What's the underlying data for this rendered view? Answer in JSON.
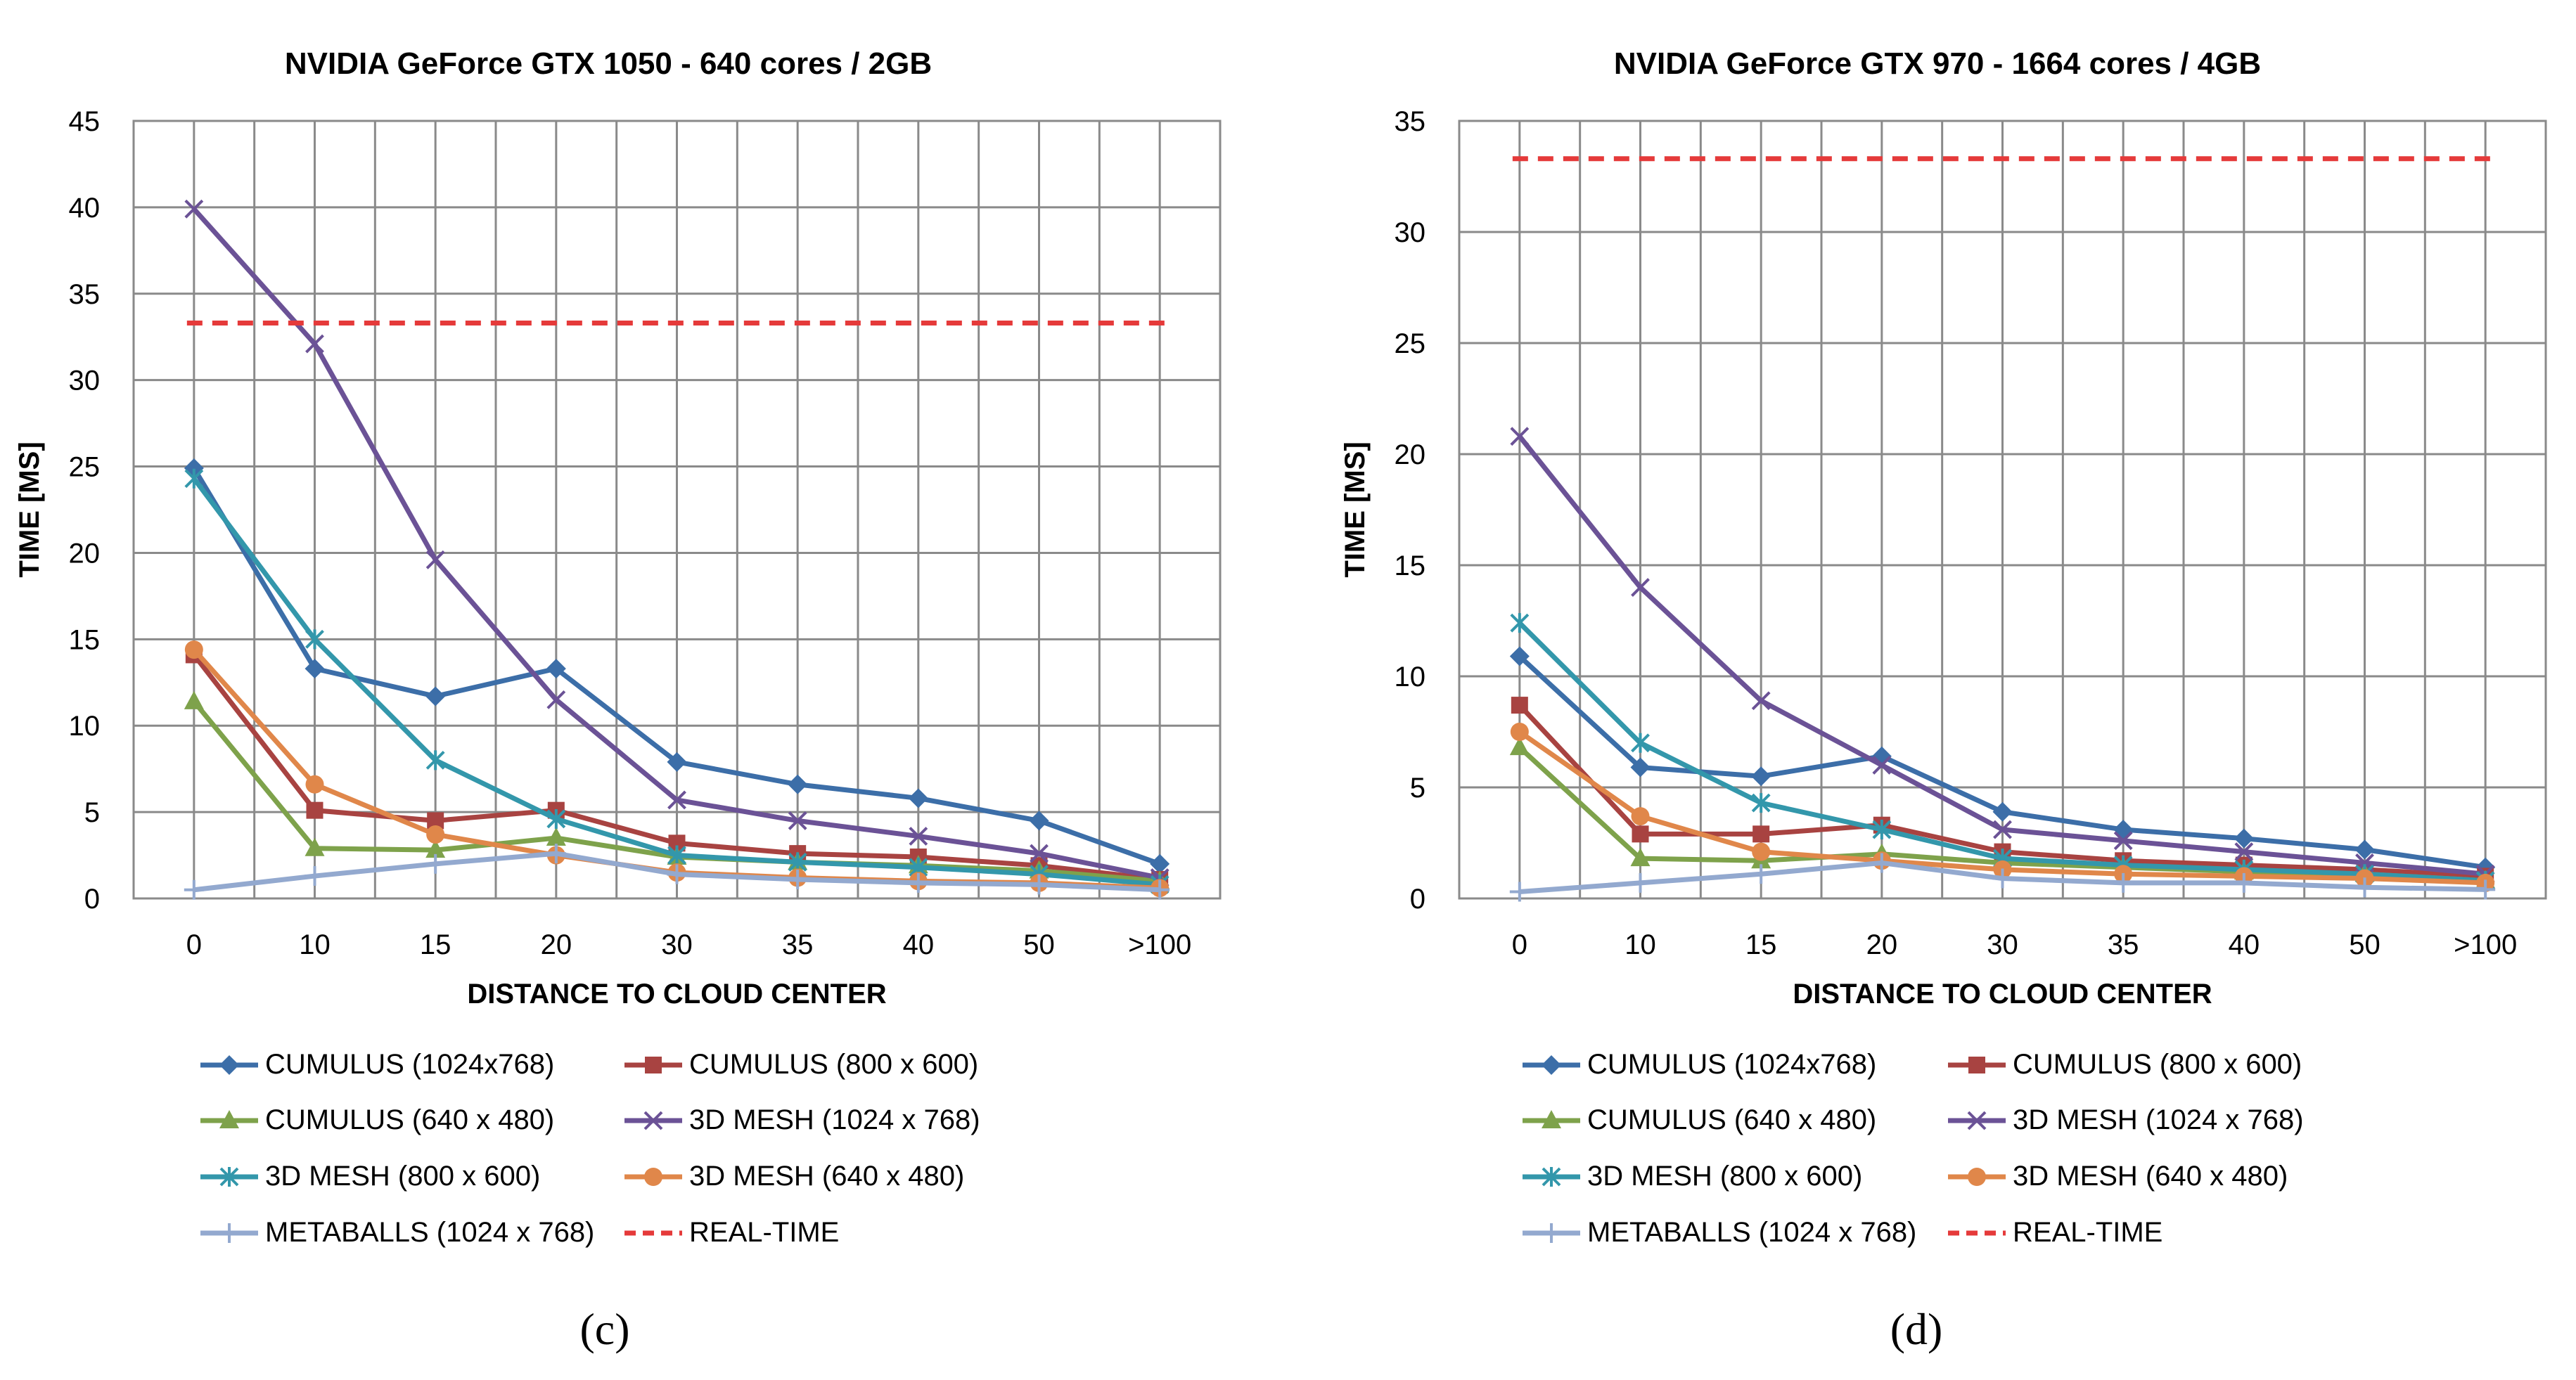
{
  "chart_data": [
    {
      "type": "line",
      "panel_label": "(c)",
      "title": "NVIDIA GeForce GTX 1050 - 640 cores / 2GB",
      "xlabel": "DISTANCE TO  CLOUD CENTER",
      "ylabel": "TIME [MS]",
      "categories": [
        "0",
        "10",
        "15",
        "20",
        "30",
        "35",
        "40",
        "50",
        ">100"
      ],
      "ylim": [
        0,
        45
      ],
      "yticks": [
        "0",
        "5",
        "10",
        "15",
        "20",
        "25",
        "30",
        "35",
        "40",
        "45"
      ],
      "grid": true,
      "legend_position": "bottom",
      "series": [
        {
          "name": "CUMULUS (1024x768)",
          "color": "#3c6ea8",
          "marker": "diamond",
          "values": [
            24.9,
            13.3,
            11.7,
            13.3,
            7.9,
            6.6,
            5.8,
            4.5,
            2.0
          ]
        },
        {
          "name": "CUMULUS (800 x 600)",
          "color": "#a84341",
          "marker": "square",
          "values": [
            14.1,
            5.1,
            4.5,
            5.1,
            3.2,
            2.6,
            2.4,
            1.9,
            1.1
          ]
        },
        {
          "name": "CUMULUS (640 x 480)",
          "color": "#7ea24b",
          "marker": "triangle",
          "values": [
            11.4,
            2.9,
            2.8,
            3.5,
            2.4,
            2.1,
            1.9,
            1.6,
            1.0
          ]
        },
        {
          "name": "3D MESH  (1024  x 768)",
          "color": "#6b5296",
          "marker": "x",
          "values": [
            39.9,
            32.1,
            19.6,
            11.5,
            5.7,
            4.5,
            3.6,
            2.6,
            1.2
          ]
        },
        {
          "name": "3D MESH (800 x 600)",
          "color": "#3397ab",
          "marker": "asterisk",
          "values": [
            24.3,
            15.0,
            8.0,
            4.6,
            2.5,
            2.1,
            1.8,
            1.4,
            0.8
          ]
        },
        {
          "name": "3D MESH (640 x 480)",
          "color": "#e0874a",
          "marker": "circle",
          "values": [
            14.4,
            6.6,
            3.7,
            2.5,
            1.5,
            1.2,
            1.0,
            0.9,
            0.6
          ]
        },
        {
          "name": "METABALLS (1024 x 768)",
          "color": "#93a9cf",
          "marker": "plus",
          "values": [
            0.5,
            1.3,
            2.0,
            2.6,
            1.4,
            1.1,
            0.9,
            0.8,
            0.5
          ]
        },
        {
          "name": "REAL-TIME",
          "color": "#e53a3a",
          "marker": "none",
          "dashed": true,
          "values": [
            33.3,
            33.3,
            33.3,
            33.3,
            33.3,
            33.3,
            33.3,
            33.3,
            33.3
          ]
        }
      ]
    },
    {
      "type": "line",
      "panel_label": "(d)",
      "title": "NVIDIA GeForce GTX 970 - 1664 cores / 4GB",
      "xlabel": "DISTANCE TO  CLOUD CENTER",
      "ylabel": "TIME [MS]",
      "categories": [
        "0",
        "10",
        "15",
        "20",
        "30",
        "35",
        "40",
        "50",
        ">100"
      ],
      "ylim": [
        0,
        35
      ],
      "yticks": [
        "0",
        "5",
        "10",
        "15",
        "20",
        "25",
        "30",
        "35"
      ],
      "grid": true,
      "legend_position": "bottom",
      "series": [
        {
          "name": "CUMULUS (1024x768)",
          "color": "#3c6ea8",
          "marker": "diamond",
          "values": [
            10.9,
            5.9,
            5.5,
            6.4,
            3.9,
            3.1,
            2.7,
            2.2,
            1.4
          ]
        },
        {
          "name": "CUMULUS (800 x 600)",
          "color": "#a84341",
          "marker": "square",
          "values": [
            8.7,
            2.9,
            2.9,
            3.3,
            2.1,
            1.7,
            1.5,
            1.3,
            1.0
          ]
        },
        {
          "name": "CUMULUS (640 x 480)",
          "color": "#7ea24b",
          "marker": "triangle",
          "values": [
            6.8,
            1.8,
            1.7,
            2.0,
            1.6,
            1.4,
            1.2,
            1.1,
            0.8
          ]
        },
        {
          "name": "3D MESH  (1024  x 768)",
          "color": "#6b5296",
          "marker": "x",
          "values": [
            20.8,
            14.0,
            8.9,
            6.0,
            3.1,
            2.6,
            2.1,
            1.6,
            1.1
          ]
        },
        {
          "name": "3D MESH (800 x 600)",
          "color": "#3397ab",
          "marker": "asterisk",
          "values": [
            12.4,
            7.0,
            4.3,
            3.1,
            1.8,
            1.5,
            1.3,
            1.1,
            0.8
          ]
        },
        {
          "name": "3D MESH (640 x 480)",
          "color": "#e0874a",
          "marker": "circle",
          "values": [
            7.5,
            3.7,
            2.1,
            1.7,
            1.3,
            1.1,
            1.0,
            0.9,
            0.7
          ]
        },
        {
          "name": "METABALLS (1024 x 768)",
          "color": "#93a9cf",
          "marker": "plus",
          "values": [
            0.3,
            0.7,
            1.1,
            1.6,
            0.9,
            0.7,
            0.7,
            0.5,
            0.4
          ]
        },
        {
          "name": "REAL-TIME",
          "color": "#e53a3a",
          "marker": "none",
          "dashed": true,
          "values": [
            33.3,
            33.3,
            33.3,
            33.3,
            33.3,
            33.3,
            33.3,
            33.3,
            33.3
          ]
        }
      ]
    }
  ]
}
